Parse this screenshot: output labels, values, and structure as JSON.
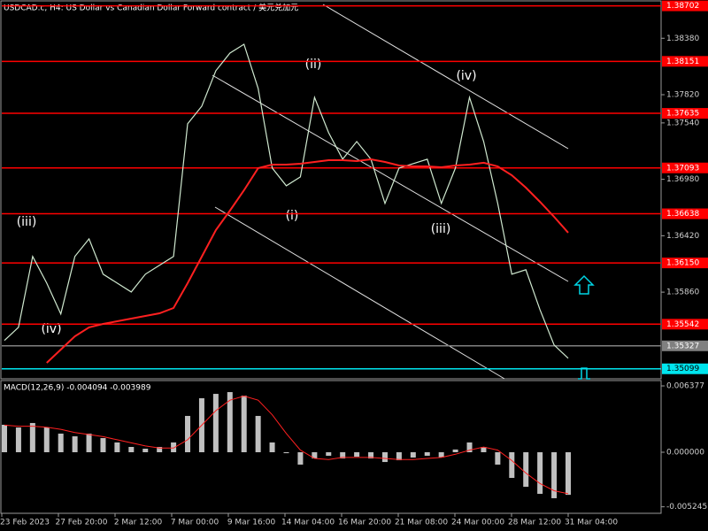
{
  "chart_data": {
    "type": "line",
    "title": "USDCAD.c, H4:  US Dollar vs Canadian Dollar Forward contract / 美元兑加元",
    "ylim": [
      1.35,
      1.3876
    ],
    "yticks": [
      {
        "value": 1.3838,
        "label": "1.38380"
      },
      {
        "value": 1.3782,
        "label": "1.37820"
      },
      {
        "value": 1.3754,
        "label": "1.37540"
      },
      {
        "value": 1.3698,
        "label": "1.36980"
      },
      {
        "value": 1.3642,
        "label": "1.36420"
      },
      {
        "value": 1.3586,
        "label": "1.35860"
      }
    ],
    "levels": [
      {
        "value": 1.38702,
        "label": "1.38702",
        "color": "#ff0000"
      },
      {
        "value": 1.38151,
        "label": "1.38151",
        "color": "#ff0000"
      },
      {
        "value": 1.37635,
        "label": "1.37635",
        "color": "#ff0000"
      },
      {
        "value": 1.37093,
        "label": "1.37093",
        "color": "#ff0000"
      },
      {
        "value": 1.36638,
        "label": "1.36638",
        "color": "#ff0000"
      },
      {
        "value": 1.3615,
        "label": "1.36150",
        "color": "#ff0000"
      },
      {
        "value": 1.35542,
        "label": "1.35542",
        "color": "#ff0000"
      },
      {
        "value": 1.35327,
        "label": "1.35327",
        "color": "#808080"
      },
      {
        "value": 1.35099,
        "label": "1.35099",
        "color": "#00e5ee"
      }
    ],
    "series": [
      {
        "color": "#cfe8cf",
        "values": [
          1.3538,
          1.35511,
          1.36214,
          1.3595,
          1.35643,
          1.36214,
          1.36389,
          1.36038,
          1.3595,
          1.35862,
          1.36038,
          1.36126,
          1.36214,
          1.37531,
          1.37706,
          1.38058,
          1.38233,
          1.38321,
          1.37882,
          1.37092,
          1.36916,
          1.37004,
          1.37794,
          1.37443,
          1.3718,
          1.37355,
          1.3718,
          1.3674,
          1.37092,
          1.37136,
          1.3718,
          1.3674,
          1.37092,
          1.37794,
          1.37355,
          1.3674,
          1.36038,
          1.36082,
          1.35687,
          1.35336,
          1.35204
        ]
      },
      {
        "color": "#ff2020",
        "values": [
          null,
          null,
          null,
          1.35158,
          1.3529,
          1.35422,
          1.3551,
          1.35545,
          1.35571,
          1.35597,
          1.35624,
          1.3565,
          1.35703,
          1.35949,
          1.36212,
          1.36476,
          1.36669,
          1.36871,
          1.37091,
          1.37126,
          1.37126,
          1.37135,
          1.37152,
          1.3717,
          1.3717,
          1.37161,
          1.37179,
          1.37152,
          1.37117,
          1.37108,
          1.37108,
          1.371,
          1.37117,
          1.37126,
          1.37144,
          1.37108,
          1.37021,
          1.36898,
          1.36757,
          1.36608,
          1.3645
        ]
      }
    ],
    "waves": [
      "(iii)",
      "(iv)",
      "(ii)",
      "(i)",
      "(iv)",
      "(iii)"
    ],
    "xlabels": [
      "23 Feb 2023",
      "27 Feb 20:00",
      "2 Mar 12:00",
      "7 Mar 00:00",
      "9 Mar 16:00",
      "14 Mar 04:00",
      "16 Mar 20:00",
      "21 Mar 08:00",
      "24 Mar 00:00",
      "28 Mar 12:00",
      "31 Mar 04:00"
    ],
    "macd": {
      "label": "MACD(12,26,9) -0.004094 -0.003989",
      "ylim": [
        -0.00587,
        0.00689
      ],
      "yticks": [
        0.006377,
        {
          "value": 0,
          "label": "0.000000"
        },
        -0.005245
      ],
      "histogram": {
        "color": "#c0c0c0",
        "values": [
          0.00264,
          0.00238,
          0.00281,
          0.00238,
          0.00179,
          0.00153,
          0.00179,
          0.00136,
          0.00094,
          0.00051,
          0.00034,
          0.00051,
          0.00094,
          0.00349,
          0.00519,
          0.00561,
          0.00578,
          0.00544,
          0.00349,
          0.00094,
          -9e-05,
          -0.00119,
          -0.0006,
          -0.00034,
          -0.0006,
          -0.00043,
          -0.0006,
          -0.00094,
          -0.00077,
          -0.00051,
          -0.00034,
          -0.00051,
          0.00026,
          0.00094,
          0.00051,
          -0.00119,
          -0.00247,
          -0.00332,
          -0.004,
          -0.00442,
          -0.004094
        ]
      },
      "signal": {
        "color": "#ff2020",
        "values": [
          0.0026,
          0.0025,
          0.0025,
          0.0024,
          0.0022,
          0.0019,
          0.0017,
          0.0015,
          0.0012,
          0.0009,
          0.0006,
          0.0004,
          0.0004,
          0.0012,
          0.0026,
          0.004,
          0.005,
          0.0054,
          0.005,
          0.0036,
          0.0018,
          0.0002,
          -0.0006,
          -0.0007,
          -0.0005,
          -0.0005,
          -0.0005,
          -0.0006,
          -0.0007,
          -0.0007,
          -0.0006,
          -0.0005,
          -0.0002,
          0.0002,
          0.0005,
          0.0002,
          -0.0008,
          -0.002,
          -0.003,
          -0.0037,
          -0.003989
        ]
      }
    }
  }
}
